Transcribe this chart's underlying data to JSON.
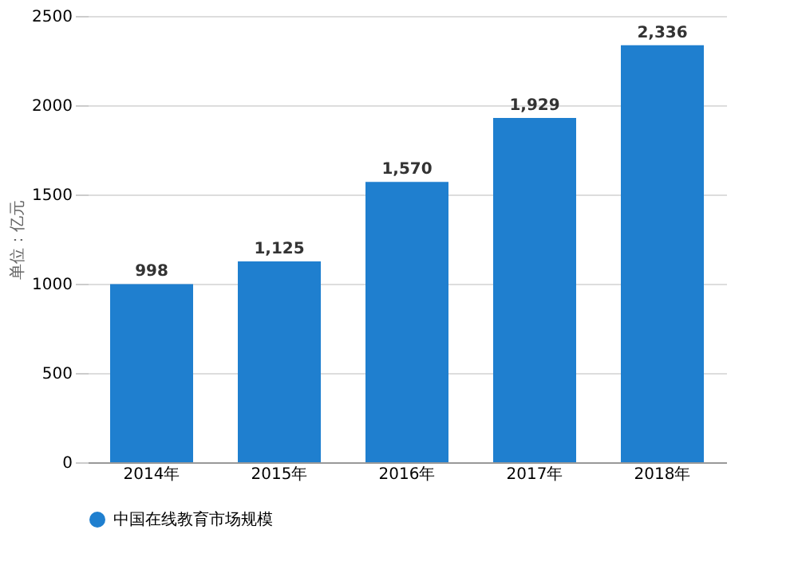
{
  "chart_data": {
    "type": "bar",
    "ylabel": "单位：亿元",
    "categories": [
      "2014年",
      "2015年",
      "2016年",
      "2017年",
      "2018年"
    ],
    "series": [
      {
        "name": "中国在线教育市场规模",
        "color": "#1f7fcf",
        "values": [
          998,
          1125,
          1570,
          1929,
          2336
        ]
      }
    ],
    "value_labels": [
      "998",
      "1,125",
      "1,570",
      "1,929",
      "2,336"
    ],
    "ylim": [
      0,
      2500
    ],
    "yticks": [
      0,
      500,
      1000,
      1500,
      2000,
      2500
    ],
    "grid": "y",
    "legend": "bottom"
  }
}
